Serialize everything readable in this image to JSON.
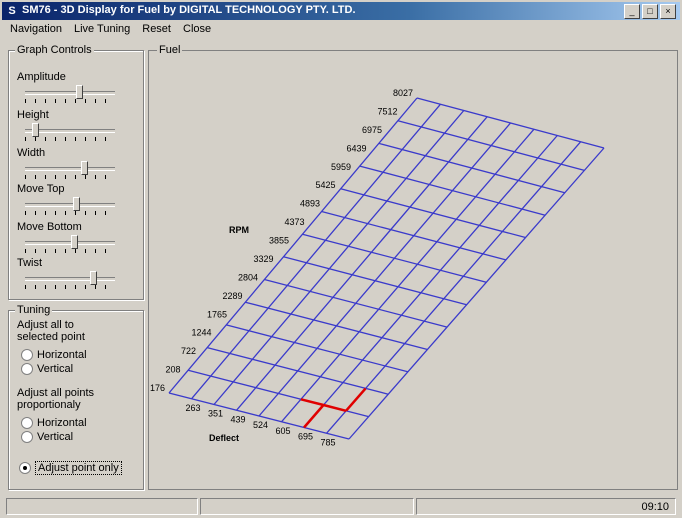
{
  "window": {
    "title": "SM76 - 3D Display for Fuel  by DIGITAL TECHNOLOGY PTY. LTD.",
    "app_icon": "app-icon",
    "buttons": [
      "minimize-icon",
      "maximize-icon",
      "close-icon"
    ]
  },
  "menu": [
    "Navigation",
    "Live Tuning",
    "Reset",
    "Close"
  ],
  "graph_controls": {
    "title": "Graph Controls",
    "sliders": [
      {
        "label": "Amplitude",
        "value": 0.62
      },
      {
        "label": "Height",
        "value": 0.08
      },
      {
        "label": "Width",
        "value": 0.68
      },
      {
        "label": "Move Top",
        "value": 0.58
      },
      {
        "label": "Move Bottom",
        "value": 0.55
      },
      {
        "label": "Twist",
        "value": 0.78
      }
    ]
  },
  "tuning": {
    "title": "Tuning",
    "adjust_all_selected": "Adjust all to selected point",
    "adjust_all_prop": "Adjust all points proportionaly",
    "horizontal": "Horizontal",
    "vertical": "Vertical",
    "adjust_point_only": "Adjust point only"
  },
  "fuel_panel": {
    "title": "Fuel",
    "rpm_axis_label": "RPM",
    "deflect_axis_label": "Deflect",
    "rpm_ticks": [
      "176",
      "208",
      "722",
      "1244",
      "1765",
      "2289",
      "2804",
      "3329",
      "3855",
      "4373",
      "4893",
      "5425",
      "5959",
      "6439",
      "6975",
      "7512",
      "8027"
    ],
    "deflect_ticks": [
      "263",
      "351",
      "439",
      "524",
      "605",
      "695",
      "785"
    ],
    "accent": "#3a3acb",
    "highlight": "#e00000"
  },
  "status": {
    "time": "09:10"
  }
}
